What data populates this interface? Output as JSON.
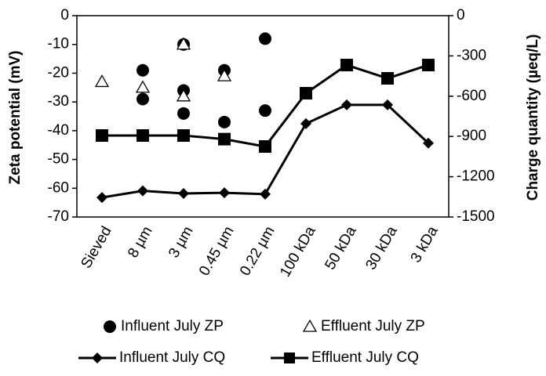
{
  "chart_data": {
    "type": "line",
    "y_label": "Zeta potential (mV)",
    "y2_label": "Charge quantity (µeq/L)",
    "categories": [
      "Sieved",
      "8 µm",
      "3 µm",
      "0.45 µm",
      "0.22 µm",
      "100 kDa",
      "50 kDa",
      "30 kDa",
      "3 kDa"
    ],
    "ylim": [
      -70,
      0
    ],
    "yticks": [
      0,
      -10,
      -20,
      -30,
      -40,
      -50,
      -60,
      -70
    ],
    "y2lim": [
      -1500,
      0
    ],
    "y2ticks": [
      0,
      -300,
      -600,
      -900,
      -1200,
      -1500
    ],
    "series": [
      {
        "name": "Influent July ZP",
        "type": "scatter",
        "marker": "circle",
        "color": "#000000",
        "values": [
          null,
          [
            -19,
            -29
          ],
          [
            -10,
            -26,
            -34
          ],
          [
            -19,
            -37
          ],
          [
            -8,
            -33
          ],
          null,
          null,
          null,
          null
        ]
      },
      {
        "name": "Effluent July ZP",
        "type": "scatter",
        "marker": "triangle",
        "color": "#000000",
        "values": [
          [
            -23
          ],
          [
            -25
          ],
          [
            -10,
            -28
          ],
          [
            -21
          ],
          null,
          null,
          null,
          null,
          null
        ]
      },
      {
        "name": "Influent July CQ",
        "type": "line",
        "marker": "diamond",
        "color": "#000000",
        "axis": "y2",
        "values": [
          -1355,
          -1305,
          -1325,
          -1320,
          -1330,
          -805,
          -665,
          -665,
          -950
        ]
      },
      {
        "name": "Effluent July CQ",
        "type": "line",
        "marker": "square",
        "color": "#000000",
        "axis": "y2",
        "values": [
          -893,
          -893,
          -893,
          -920,
          -975,
          -578,
          -368,
          -467,
          -368
        ]
      }
    ]
  }
}
